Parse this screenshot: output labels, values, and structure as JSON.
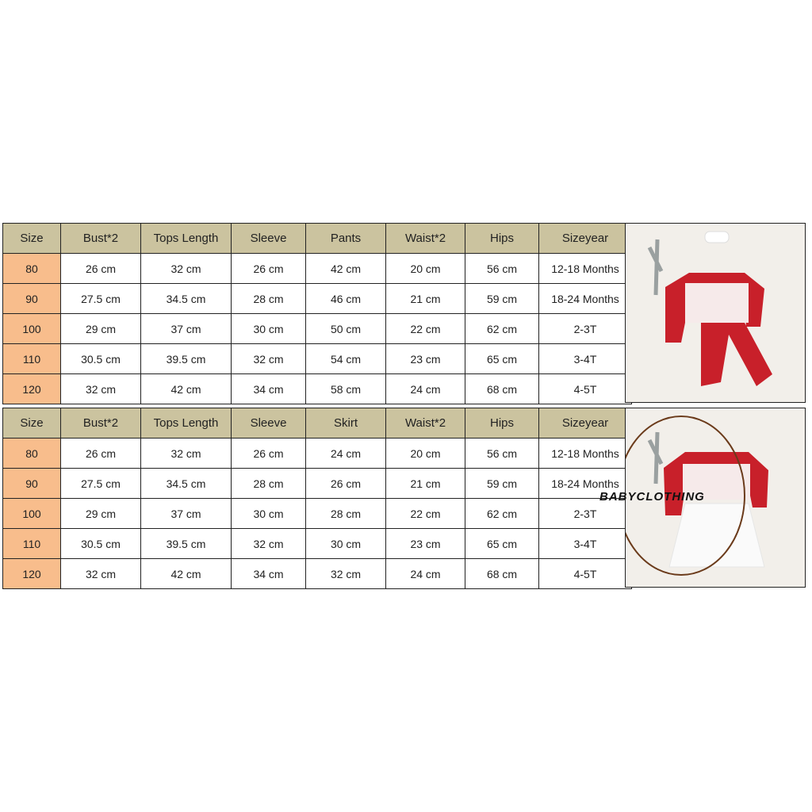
{
  "tables": [
    {
      "headers": [
        "Size",
        "Bust*2",
        "Tops Length",
        "Sleeve",
        "Pants",
        "Waist*2",
        "Hips",
        "Sizeyear"
      ],
      "rows": [
        [
          "80",
          "26 cm",
          "32 cm",
          "26 cm",
          "42 cm",
          "20 cm",
          "56 cm",
          "12-18 Months"
        ],
        [
          "90",
          "27.5 cm",
          "34.5 cm",
          "28 cm",
          "46 cm",
          "21 cm",
          "59 cm",
          "18-24 Months"
        ],
        [
          "100",
          "29 cm",
          "37 cm",
          "30 cm",
          "50 cm",
          "22 cm",
          "62 cm",
          "2-3T"
        ],
        [
          "110",
          "30.5 cm",
          "39.5 cm",
          "32 cm",
          "54 cm",
          "23 cm",
          "65 cm",
          "3-4T"
        ],
        [
          "120",
          "32 cm",
          "42 cm",
          "34 cm",
          "58 cm",
          "24 cm",
          "68 cm",
          "4-5T"
        ]
      ]
    },
    {
      "headers": [
        "Size",
        "Bust*2",
        "Tops Length",
        "Sleeve",
        "Skirt",
        "Waist*2",
        "Hips",
        "Sizeyear"
      ],
      "rows": [
        [
          "80",
          "26 cm",
          "32 cm",
          "26 cm",
          "24 cm",
          "20 cm",
          "56 cm",
          "12-18 Months"
        ],
        [
          "90",
          "27.5 cm",
          "34.5 cm",
          "28 cm",
          "26 cm",
          "21 cm",
          "59 cm",
          "18-24 Months"
        ],
        [
          "100",
          "29 cm",
          "37 cm",
          "30 cm",
          "28 cm",
          "22 cm",
          "62 cm",
          "2-3T"
        ],
        [
          "110",
          "30.5 cm",
          "39.5 cm",
          "32 cm",
          "30 cm",
          "23 cm",
          "65 cm",
          "3-4T"
        ],
        [
          "120",
          "32 cm",
          "42 cm",
          "34 cm",
          "32 cm",
          "24 cm",
          "68 cm",
          "4-5T"
        ]
      ]
    }
  ],
  "watermark": "BABYCLOTHING",
  "colors": {
    "header_bg": "#cbc39f",
    "size_bg": "#f8bd8c",
    "outfit_red": "#c8202a"
  }
}
